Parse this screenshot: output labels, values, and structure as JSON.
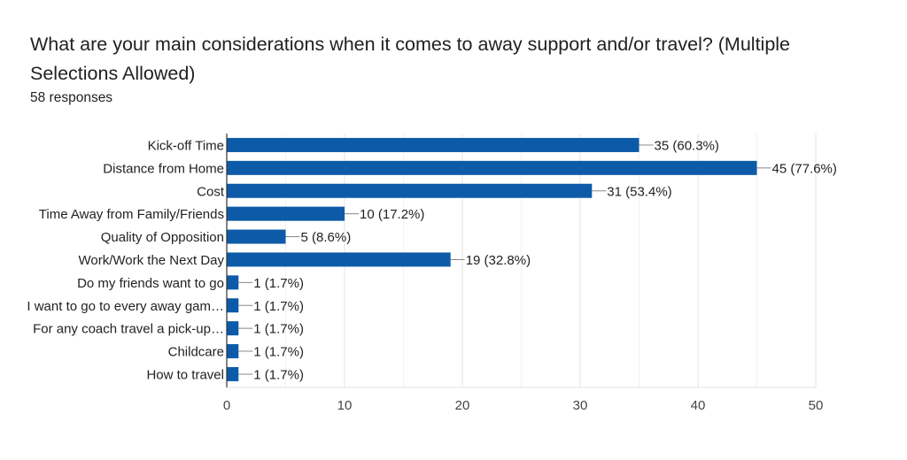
{
  "chart_data": {
    "type": "bar",
    "orientation": "horizontal",
    "title": "What are your main considerations when it comes to away support and/or travel? (Multiple Selections Allowed)",
    "subtitle": "58 responses",
    "categories": [
      "Kick-off Time",
      "Distance from Home",
      "Cost",
      "Time Away from Family/Friends",
      "Quality of Opposition",
      "Work/Work the Next Day",
      "Do my friends want to go",
      "I want to go to every away gam…",
      "For any coach travel a pick-up…",
      "Childcare",
      "How to travel"
    ],
    "values": [
      35,
      45,
      31,
      10,
      5,
      19,
      1,
      1,
      1,
      1,
      1
    ],
    "data_labels": [
      "35 (60.3%)",
      "45 (77.6%)",
      "31 (53.4%)",
      "10 (17.2%)",
      "5 (8.6%)",
      "19 (32.8%)",
      "1 (1.7%)",
      "1 (1.7%)",
      "1 (1.7%)",
      "1 (1.7%)",
      "1 (1.7%)"
    ],
    "xlim": [
      0,
      50
    ],
    "xticks": [
      0,
      10,
      20,
      30,
      40,
      50
    ],
    "minor_grid_step": 5,
    "grid": true,
    "legend": "none",
    "xlabel": "",
    "ylabel": "",
    "bar_color": "#0d5ba8"
  }
}
